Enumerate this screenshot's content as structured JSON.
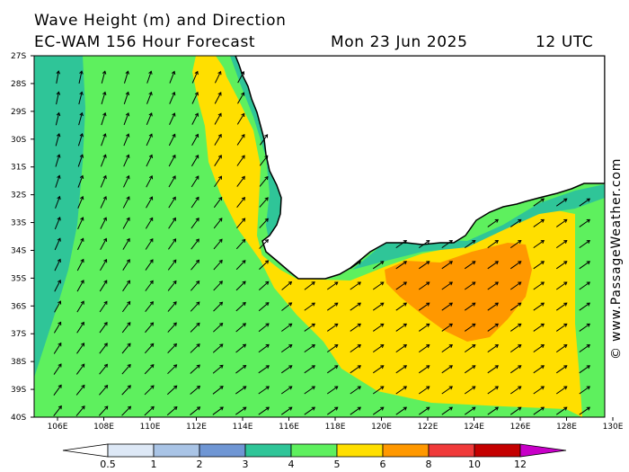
{
  "header": {
    "title_line1": "Wave Height (m) and Direction",
    "title_line2": "EC-WAM 156 Hour Forecast",
    "date": "Mon 23 Jun 2025",
    "time": "12 UTC"
  },
  "copyright": "© www.PassageWeather.com",
  "map": {
    "latitude_labels": [
      "27S",
      "28S",
      "29S",
      "30S",
      "31S",
      "32S",
      "33S",
      "34S",
      "35S",
      "36S",
      "37S",
      "38S",
      "39S",
      "40S"
    ],
    "longitude_labels": [
      "106E",
      "108E",
      "110E",
      "112E",
      "114E",
      "116E",
      "118E",
      "120E",
      "122E",
      "124E",
      "126E",
      "128E",
      "130E"
    ],
    "land_color": "#ffffff",
    "arrow_icon": "wave-direction-arrow-icon"
  },
  "legend": {
    "ticks": [
      "0.5",
      "1",
      "2",
      "3",
      "4",
      "5",
      "6",
      "8",
      "10",
      "12"
    ],
    "colors": [
      "#ffffff",
      "#dde8f6",
      "#a9c4e6",
      "#6f96d4",
      "#2fc598",
      "#5ef05e",
      "#ffdf00",
      "#ff9800",
      "#f03a3a",
      "#c40000",
      "#c800c8"
    ]
  }
}
